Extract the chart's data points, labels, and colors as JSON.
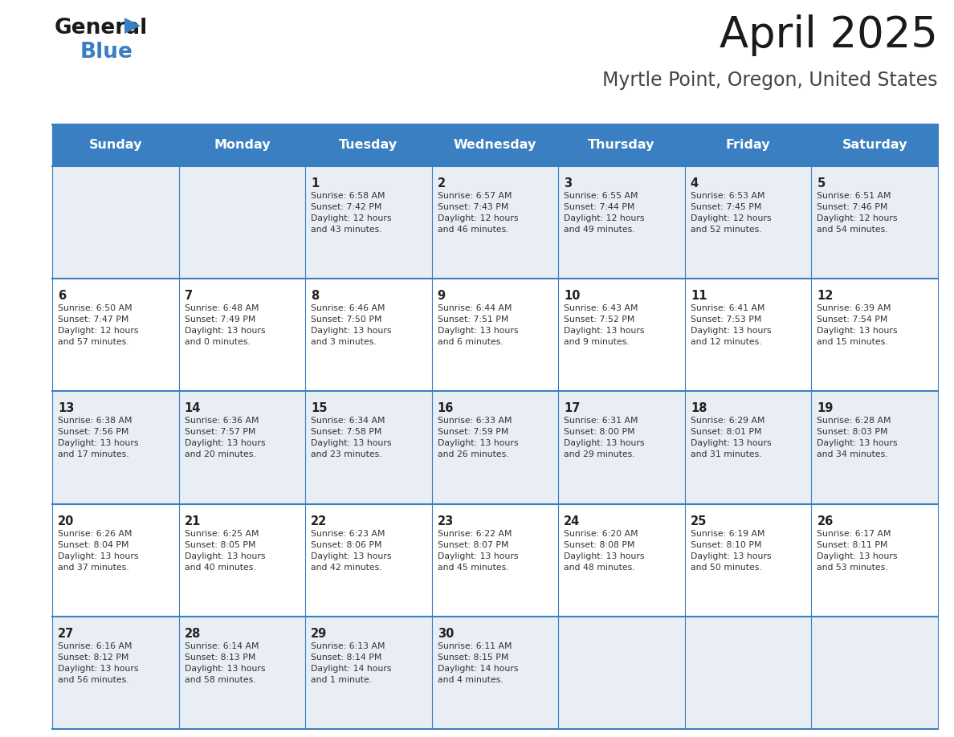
{
  "title": "April 2025",
  "subtitle": "Myrtle Point, Oregon, United States",
  "days_of_week": [
    "Sunday",
    "Monday",
    "Tuesday",
    "Wednesday",
    "Thursday",
    "Friday",
    "Saturday"
  ],
  "header_bg": "#3a7fc1",
  "header_text": "#ffffff",
  "row_bg_odd": "#e8eef4",
  "row_bg_even": "#ffffff",
  "border_color": "#3a7fc1",
  "title_color": "#1a1a1a",
  "subtitle_color": "#444444",
  "day_num_color": "#222222",
  "cell_text_color": "#333333",
  "logo_black": "#1a1a1a",
  "logo_blue": "#3a7fc1",
  "weeks": [
    [
      {
        "day": null,
        "text": ""
      },
      {
        "day": null,
        "text": ""
      },
      {
        "day": 1,
        "text": "Sunrise: 6:58 AM\nSunset: 7:42 PM\nDaylight: 12 hours\nand 43 minutes."
      },
      {
        "day": 2,
        "text": "Sunrise: 6:57 AM\nSunset: 7:43 PM\nDaylight: 12 hours\nand 46 minutes."
      },
      {
        "day": 3,
        "text": "Sunrise: 6:55 AM\nSunset: 7:44 PM\nDaylight: 12 hours\nand 49 minutes."
      },
      {
        "day": 4,
        "text": "Sunrise: 6:53 AM\nSunset: 7:45 PM\nDaylight: 12 hours\nand 52 minutes."
      },
      {
        "day": 5,
        "text": "Sunrise: 6:51 AM\nSunset: 7:46 PM\nDaylight: 12 hours\nand 54 minutes."
      }
    ],
    [
      {
        "day": 6,
        "text": "Sunrise: 6:50 AM\nSunset: 7:47 PM\nDaylight: 12 hours\nand 57 minutes."
      },
      {
        "day": 7,
        "text": "Sunrise: 6:48 AM\nSunset: 7:49 PM\nDaylight: 13 hours\nand 0 minutes."
      },
      {
        "day": 8,
        "text": "Sunrise: 6:46 AM\nSunset: 7:50 PM\nDaylight: 13 hours\nand 3 minutes."
      },
      {
        "day": 9,
        "text": "Sunrise: 6:44 AM\nSunset: 7:51 PM\nDaylight: 13 hours\nand 6 minutes."
      },
      {
        "day": 10,
        "text": "Sunrise: 6:43 AM\nSunset: 7:52 PM\nDaylight: 13 hours\nand 9 minutes."
      },
      {
        "day": 11,
        "text": "Sunrise: 6:41 AM\nSunset: 7:53 PM\nDaylight: 13 hours\nand 12 minutes."
      },
      {
        "day": 12,
        "text": "Sunrise: 6:39 AM\nSunset: 7:54 PM\nDaylight: 13 hours\nand 15 minutes."
      }
    ],
    [
      {
        "day": 13,
        "text": "Sunrise: 6:38 AM\nSunset: 7:56 PM\nDaylight: 13 hours\nand 17 minutes."
      },
      {
        "day": 14,
        "text": "Sunrise: 6:36 AM\nSunset: 7:57 PM\nDaylight: 13 hours\nand 20 minutes."
      },
      {
        "day": 15,
        "text": "Sunrise: 6:34 AM\nSunset: 7:58 PM\nDaylight: 13 hours\nand 23 minutes."
      },
      {
        "day": 16,
        "text": "Sunrise: 6:33 AM\nSunset: 7:59 PM\nDaylight: 13 hours\nand 26 minutes."
      },
      {
        "day": 17,
        "text": "Sunrise: 6:31 AM\nSunset: 8:00 PM\nDaylight: 13 hours\nand 29 minutes."
      },
      {
        "day": 18,
        "text": "Sunrise: 6:29 AM\nSunset: 8:01 PM\nDaylight: 13 hours\nand 31 minutes."
      },
      {
        "day": 19,
        "text": "Sunrise: 6:28 AM\nSunset: 8:03 PM\nDaylight: 13 hours\nand 34 minutes."
      }
    ],
    [
      {
        "day": 20,
        "text": "Sunrise: 6:26 AM\nSunset: 8:04 PM\nDaylight: 13 hours\nand 37 minutes."
      },
      {
        "day": 21,
        "text": "Sunrise: 6:25 AM\nSunset: 8:05 PM\nDaylight: 13 hours\nand 40 minutes."
      },
      {
        "day": 22,
        "text": "Sunrise: 6:23 AM\nSunset: 8:06 PM\nDaylight: 13 hours\nand 42 minutes."
      },
      {
        "day": 23,
        "text": "Sunrise: 6:22 AM\nSunset: 8:07 PM\nDaylight: 13 hours\nand 45 minutes."
      },
      {
        "day": 24,
        "text": "Sunrise: 6:20 AM\nSunset: 8:08 PM\nDaylight: 13 hours\nand 48 minutes."
      },
      {
        "day": 25,
        "text": "Sunrise: 6:19 AM\nSunset: 8:10 PM\nDaylight: 13 hours\nand 50 minutes."
      },
      {
        "day": 26,
        "text": "Sunrise: 6:17 AM\nSunset: 8:11 PM\nDaylight: 13 hours\nand 53 minutes."
      }
    ],
    [
      {
        "day": 27,
        "text": "Sunrise: 6:16 AM\nSunset: 8:12 PM\nDaylight: 13 hours\nand 56 minutes."
      },
      {
        "day": 28,
        "text": "Sunrise: 6:14 AM\nSunset: 8:13 PM\nDaylight: 13 hours\nand 58 minutes."
      },
      {
        "day": 29,
        "text": "Sunrise: 6:13 AM\nSunset: 8:14 PM\nDaylight: 14 hours\nand 1 minute."
      },
      {
        "day": 30,
        "text": "Sunrise: 6:11 AM\nSunset: 8:15 PM\nDaylight: 14 hours\nand 4 minutes."
      },
      {
        "day": null,
        "text": ""
      },
      {
        "day": null,
        "text": ""
      },
      {
        "day": null,
        "text": ""
      }
    ]
  ]
}
